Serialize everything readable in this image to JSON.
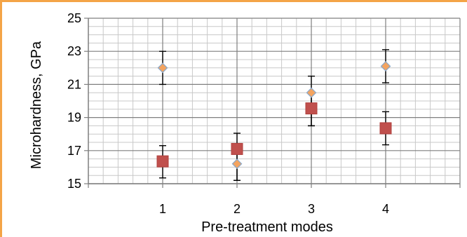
{
  "chart_data": {
    "type": "scatter",
    "title": "",
    "xlabel": "Pre-treatment modes",
    "ylabel": "Microhardness, GPa",
    "xlim": [
      0,
      5
    ],
    "ylim": [
      15,
      25
    ],
    "x_ticks": [
      "1",
      "2",
      "3",
      "4"
    ],
    "y_ticks": [
      "15",
      "17",
      "19",
      "21",
      "23",
      "25"
    ],
    "grid": true,
    "legend": "none",
    "series": [
      {
        "marker": "diamond",
        "color": "#f4a460",
        "x": [
          1,
          2,
          3,
          4
        ],
        "y": [
          22.0,
          16.2,
          20.5,
          22.1
        ],
        "err_low": [
          21.0,
          15.2,
          18.5,
          21.1
        ],
        "err_high": [
          23.0,
          17.2,
          21.5,
          23.1
        ]
      },
      {
        "marker": "square",
        "color": "#c0504d",
        "x": [
          1,
          2,
          3,
          4
        ],
        "y": [
          16.35,
          17.1,
          19.55,
          18.35
        ],
        "err_low": [
          15.35,
          15.2,
          18.5,
          17.35
        ],
        "err_high": [
          17.3,
          18.05,
          20.5,
          19.35
        ]
      }
    ]
  }
}
